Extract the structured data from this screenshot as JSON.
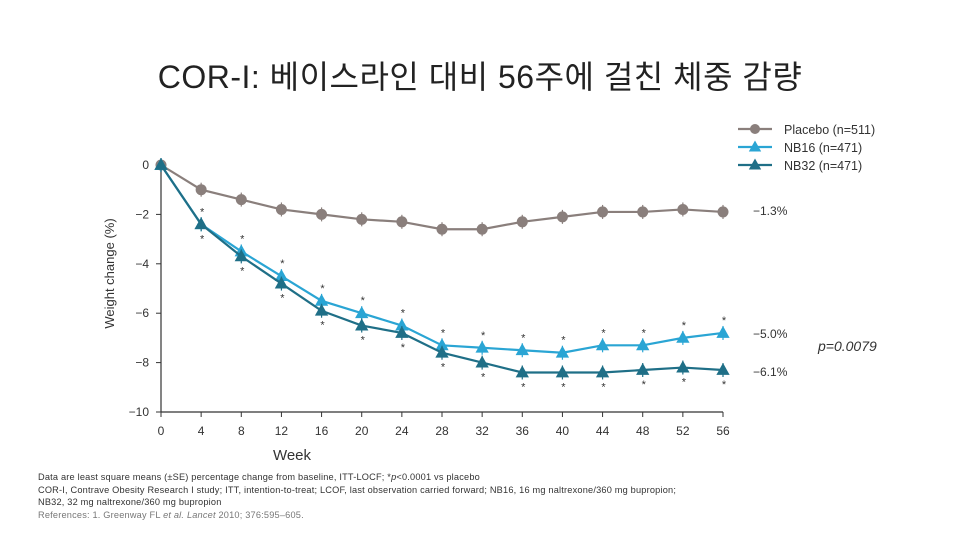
{
  "page": {
    "title": "COR-I: 베이스라인 대비 56주에 걸친 체중 감량"
  },
  "chart_data": {
    "type": "line",
    "title": "COR-I: 베이스라인 대비 56주에 걸친 체중 감량",
    "xlabel": "Week",
    "ylabel": "Weight change (%)",
    "x": [
      0,
      4,
      8,
      12,
      16,
      20,
      24,
      28,
      32,
      36,
      40,
      44,
      48,
      52,
      56
    ],
    "xlim": [
      0,
      56
    ],
    "ylim": [
      -10,
      0
    ],
    "xticks": [
      "0",
      "4",
      "8",
      "12",
      "16",
      "20",
      "24",
      "28",
      "32",
      "36",
      "40",
      "44",
      "48",
      "52",
      "56"
    ],
    "yticks": [
      {
        "value": 0,
        "label": "0"
      },
      {
        "value": -2,
        "label": "−2"
      },
      {
        "value": -4,
        "label": "−4"
      },
      {
        "value": -6,
        "label": "−6"
      },
      {
        "value": -8,
        "label": "−8"
      },
      {
        "value": -10,
        "label": "−10"
      }
    ],
    "legend_position": "top-right",
    "series": [
      {
        "name": "Placebo (n=511)",
        "marker": "circle",
        "color": "#8a7f7c",
        "values": [
          0,
          -1.0,
          -1.4,
          -1.8,
          -2.0,
          -2.2,
          -2.3,
          -2.6,
          -2.6,
          -2.3,
          -2.1,
          -1.9,
          -1.9,
          -1.8,
          -1.9
        ],
        "end_label": "−1.3%"
      },
      {
        "name": "NB16 (n=471)",
        "marker": "triangle",
        "color": "#2aa5d4",
        "values": [
          0,
          -2.4,
          -3.5,
          -4.5,
          -5.5,
          -6.0,
          -6.5,
          -7.3,
          -7.4,
          -7.5,
          -7.6,
          -7.3,
          -7.3,
          -7.0,
          -6.8
        ],
        "end_label": "−5.0%"
      },
      {
        "name": "NB32 (n=471)",
        "marker": "triangle",
        "color": "#1f6f87",
        "values": [
          0,
          -2.4,
          -3.7,
          -4.8,
          -5.9,
          -6.5,
          -6.8,
          -7.6,
          -8.0,
          -8.4,
          -8.4,
          -8.4,
          -8.3,
          -8.2,
          -8.3
        ],
        "end_label": "−6.1%"
      }
    ],
    "annotations": {
      "significance_marker": "*",
      "p_value": "p=0.0079"
    }
  },
  "footnote": {
    "line1_prefix": "Data are least square means (±SE) percentage change from baseline, ITT-LOCF; *",
    "line1_p": "p",
    "line1_suffix": "<0.0001 vs placebo",
    "line2": "COR-I, Contrave Obesity Research I study; ITT, intention-to-treat; LCOF, last observation carried forward; NB16, 16 mg naltrexone/360 mg bupropion;",
    "line3": "NB32, 32 mg naltrexone/360 mg bupropion",
    "ref_prefix": "References: 1. Greenway FL ",
    "ref_etal": "et al.",
    "ref_journal": " Lancet",
    "ref_suffix": " 2010; 376:595–605."
  }
}
